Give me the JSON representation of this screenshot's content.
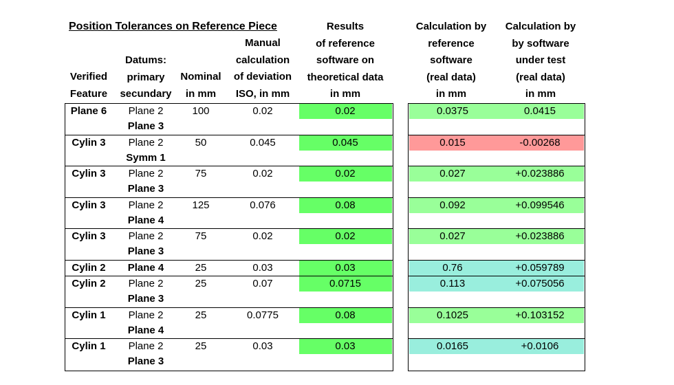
{
  "title": "Position Tolerances on Reference Piece",
  "headers": {
    "feature": [
      "Verified",
      "Feature"
    ],
    "datums": [
      "Datums:",
      "primary",
      "secundary"
    ],
    "nominal": [
      "Nominal",
      "in mm"
    ],
    "manual": [
      "Manual",
      "calculation",
      "of deviation",
      "ISO, in mm"
    ],
    "results": [
      "Results",
      "of reference",
      "software on",
      "theoretical data",
      "in mm"
    ],
    "calc_ref": [
      "Calculation by",
      "reference",
      "software",
      "(real data)",
      "in mm"
    ],
    "calc_test": [
      "Calculation by",
      "by software",
      "under test",
      "(real data)",
      "in mm"
    ]
  },
  "colors": {
    "green": "#66ff66",
    "light_green": "#99ff99",
    "red": "#ff9999",
    "teal": "#99eedd"
  },
  "rows": [
    {
      "feature": "Plane 6",
      "primary": "Plane 2",
      "primary_bold": false,
      "secondary": "Plane 3",
      "nominal": "100",
      "manual": "0.02",
      "result": "0.02",
      "calc_ref": "0.0375",
      "calc_test": "0.0415",
      "right_color": "light_green"
    },
    {
      "feature": "Cylin 3",
      "primary": "Plane 2",
      "primary_bold": false,
      "secondary": "Symm 1",
      "nominal": "50",
      "manual": "0.045",
      "result": "0.045",
      "calc_ref": "0.015",
      "calc_test": "-0.00268",
      "right_color": "red"
    },
    {
      "feature": "Cylin 3",
      "primary": "Plane 2",
      "primary_bold": false,
      "secondary": "Plane 3",
      "nominal": "75",
      "manual": "0.02",
      "result": "0.02",
      "calc_ref": "0.027",
      "calc_test": "+0.023886",
      "right_color": "light_green"
    },
    {
      "feature": "Cylin 3",
      "primary": "Plane 2",
      "primary_bold": false,
      "secondary": "Plane 4",
      "nominal": "125",
      "manual": "0.076",
      "result": "0.08",
      "calc_ref": "0.092",
      "calc_test": "+0.099546",
      "right_color": "light_green"
    },
    {
      "feature": "Cylin 3",
      "primary": "Plane 2",
      "primary_bold": false,
      "secondary": "Plane 3",
      "nominal": "75",
      "manual": "0.02",
      "result": "0.02",
      "calc_ref": "0.027",
      "calc_test": "+0.023886",
      "right_color": "light_green"
    },
    {
      "feature": "Cylin 2",
      "primary": "Plane 4",
      "primary_bold": true,
      "secondary": "",
      "nominal": "25",
      "manual": "0.03",
      "result": "0.03",
      "calc_ref": "0.76",
      "calc_test": "+0.059789",
      "right_color": "teal"
    },
    {
      "feature": "Cylin 2",
      "primary": "Plane 2",
      "primary_bold": false,
      "secondary": "Plane 3",
      "nominal": "25",
      "manual": "0.07",
      "result": "0.0715",
      "calc_ref": "0.113",
      "calc_test": "+0.075056",
      "right_color": "teal"
    },
    {
      "feature": "Cylin 1",
      "primary": "Plane 2",
      "primary_bold": false,
      "secondary": "Plane 4",
      "nominal": "25",
      "manual": "0.0775",
      "result": "0.08",
      "calc_ref": "0.1025",
      "calc_test": "+0.103152",
      "right_color": "light_green"
    },
    {
      "feature": "Cylin 1",
      "primary": "Plane 2",
      "primary_bold": false,
      "secondary": "Plane 3",
      "nominal": "25",
      "manual": "0.03",
      "result": "0.03",
      "calc_ref": "0.0165",
      "calc_test": "+0.0106",
      "right_color": "teal"
    }
  ]
}
